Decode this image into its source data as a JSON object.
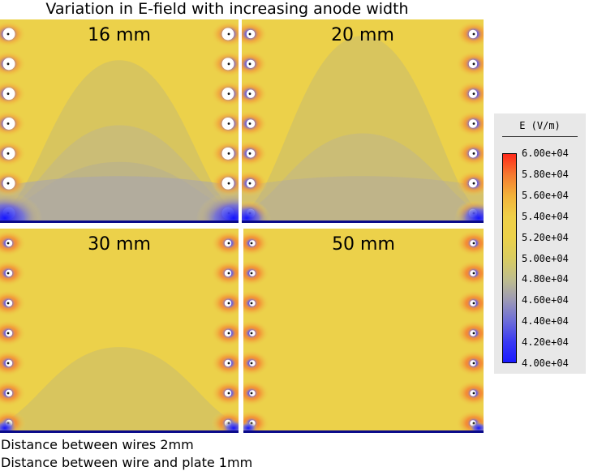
{
  "title": "Variation in E-field with increasing anode width",
  "panels": [
    {
      "label": "16 mm",
      "anode_width_mm": 16
    },
    {
      "label": "20 mm",
      "anode_width_mm": 20
    },
    {
      "label": "30 mm",
      "anode_width_mm": 30
    },
    {
      "label": "50 mm",
      "anode_width_mm": 50
    }
  ],
  "notes": {
    "line1": "Distance between wires 2mm",
    "line2": "Distance between wire and plate 1mm"
  },
  "legend": {
    "title": "E (V/m)",
    "min": 40000,
    "max": 60000,
    "ticks": [
      "6.00e+04",
      "5.80e+04",
      "5.60e+04",
      "5.40e+04",
      "5.20e+04",
      "5.00e+04",
      "4.80e+04",
      "4.60e+04",
      "4.40e+04",
      "4.20e+04",
      "4.00e+04"
    ],
    "colors": [
      "#ff2a1a",
      "#f57a30",
      "#f2b23a",
      "#efcf48",
      "#ecd14a",
      "#d9cc60",
      "#bfbe8c",
      "#9d9ab5",
      "#6e6ed8",
      "#3a3af2",
      "#1a1aff"
    ]
  },
  "colors": {
    "field_base": "#ecd14a",
    "contour_dark": "#d2c066",
    "contour_darker": "#c1b78a",
    "low_field": "#2f2fe8",
    "high_field": "#f2582a",
    "anode_plate": "#0a0a8a"
  }
}
